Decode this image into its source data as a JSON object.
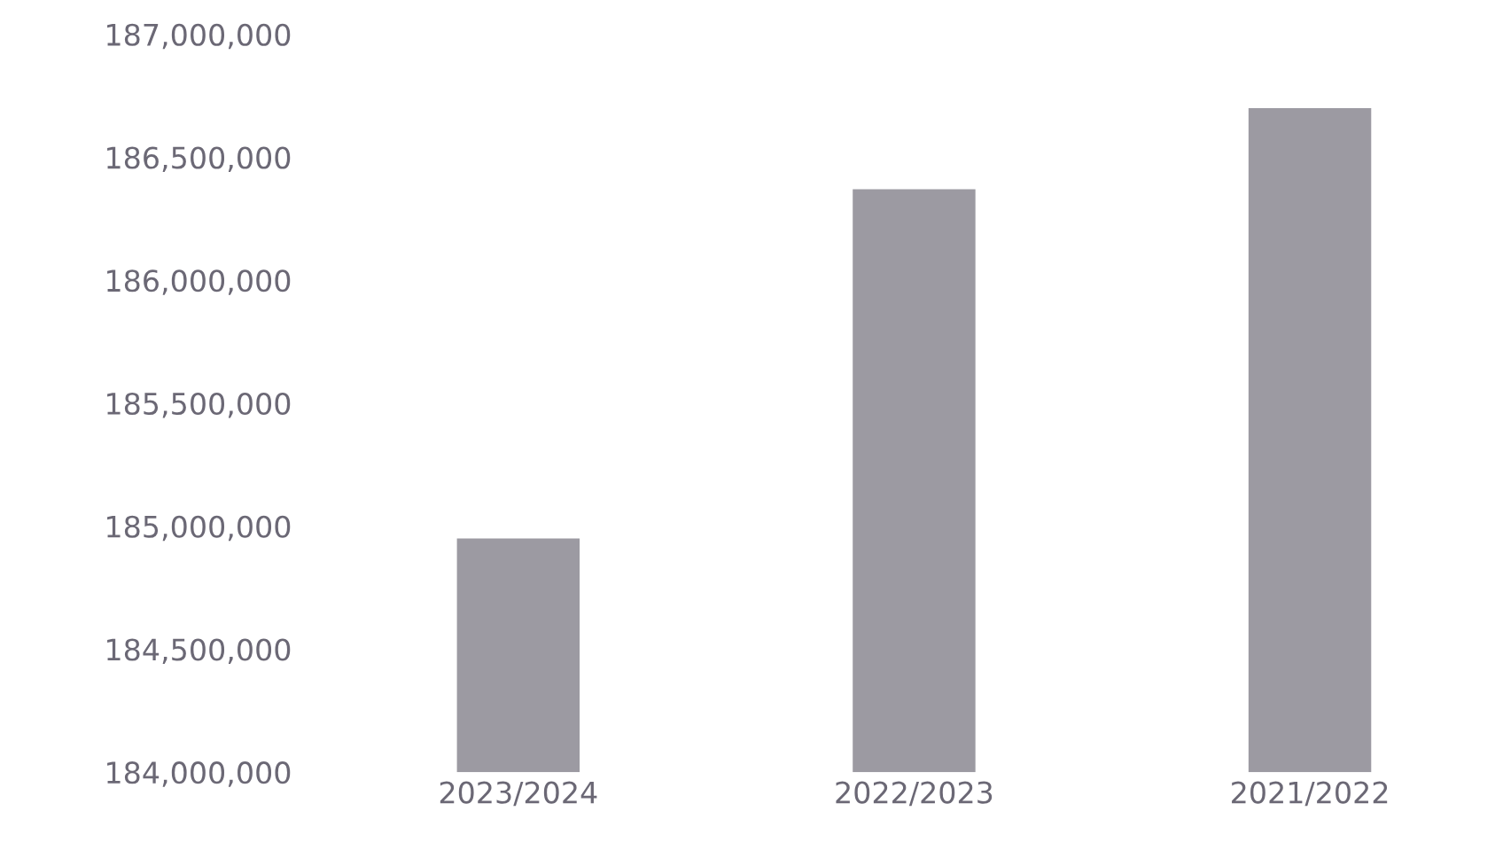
{
  "chart_data": {
    "type": "bar",
    "categories": [
      "2023/2024",
      "2022/2023",
      "2021/2022"
    ],
    "values": [
      184950000,
      186370000,
      186700000
    ],
    "color": "#9c9aa2",
    "ylim": [
      184000000,
      187000000
    ],
    "yticks": [
      {
        "value": 184000000,
        "label": "184,000,000"
      },
      {
        "value": 184500000,
        "label": "184,500,000"
      },
      {
        "value": 185000000,
        "label": "185,000,000"
      },
      {
        "value": 185500000,
        "label": "185,500,000"
      },
      {
        "value": 186000000,
        "label": "186,000,000"
      },
      {
        "value": 186500000,
        "label": "186,500,000"
      },
      {
        "value": 187000000,
        "label": "187,000,000"
      }
    ],
    "grid": false
  }
}
